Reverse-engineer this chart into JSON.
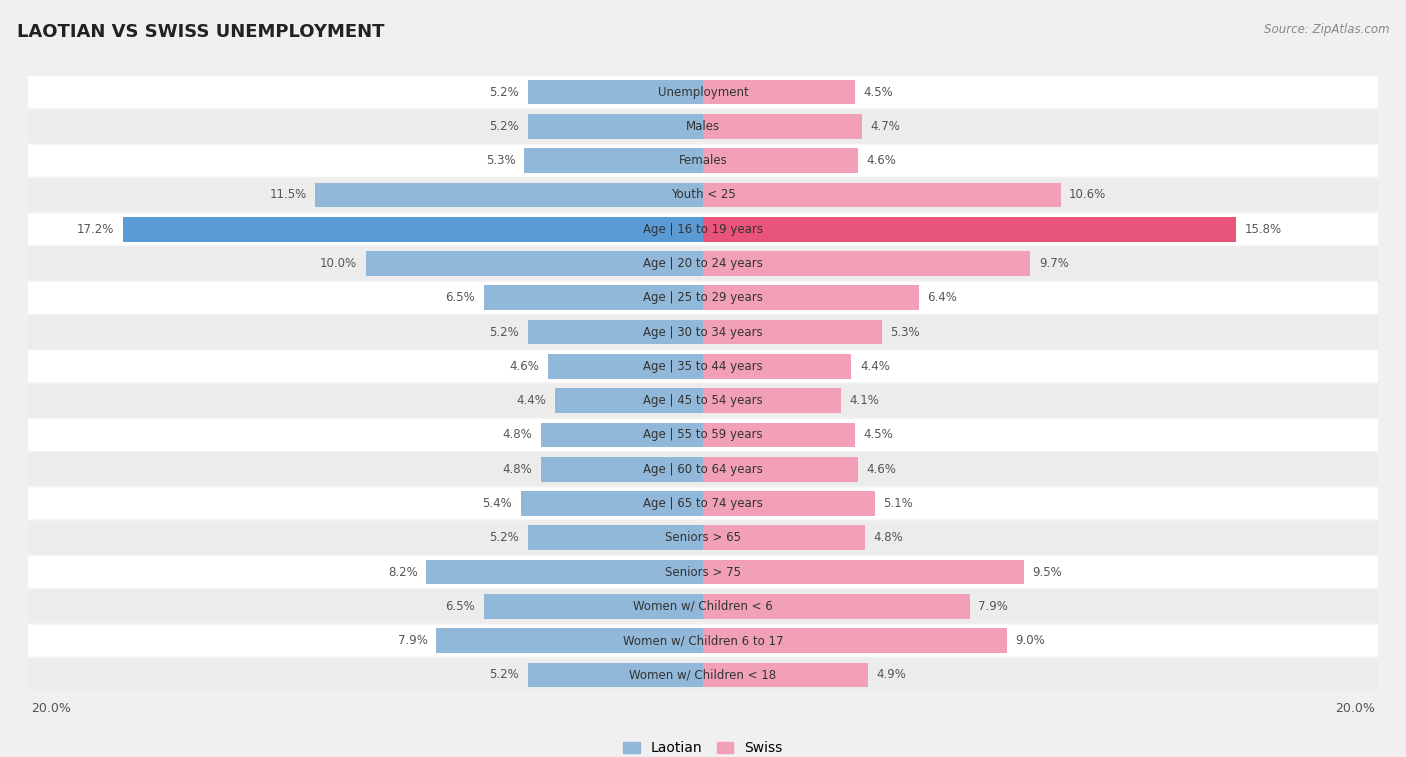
{
  "title": "LAOTIAN VS SWISS UNEMPLOYMENT",
  "source": "Source: ZipAtlas.com",
  "categories": [
    "Unemployment",
    "Males",
    "Females",
    "Youth < 25",
    "Age | 16 to 19 years",
    "Age | 20 to 24 years",
    "Age | 25 to 29 years",
    "Age | 30 to 34 years",
    "Age | 35 to 44 years",
    "Age | 45 to 54 years",
    "Age | 55 to 59 years",
    "Age | 60 to 64 years",
    "Age | 65 to 74 years",
    "Seniors > 65",
    "Seniors > 75",
    "Women w/ Children < 6",
    "Women w/ Children 6 to 17",
    "Women w/ Children < 18"
  ],
  "laotian": [
    5.2,
    5.2,
    5.3,
    11.5,
    17.2,
    10.0,
    6.5,
    5.2,
    4.6,
    4.4,
    4.8,
    4.8,
    5.4,
    5.2,
    8.2,
    6.5,
    7.9,
    5.2
  ],
  "swiss": [
    4.5,
    4.7,
    4.6,
    10.6,
    15.8,
    9.7,
    6.4,
    5.3,
    4.4,
    4.1,
    4.5,
    4.6,
    5.1,
    4.8,
    9.5,
    7.9,
    9.0,
    4.9
  ],
  "laotian_color": "#91b8d9",
  "swiss_color": "#f2a0b8",
  "laotian_highlight_color": "#5b9bd5",
  "swiss_highlight_color": "#e8547a",
  "highlight_row": 4,
  "row_colors": [
    "#ffffff",
    "#ececec"
  ],
  "background_color": "#f0f0f0",
  "axis_limit": 20.0,
  "legend_labels": [
    "Laotian",
    "Swiss"
  ],
  "value_label_color": "#555555",
  "category_label_color": "#555555",
  "title_color": "#222222",
  "source_color": "#888888"
}
